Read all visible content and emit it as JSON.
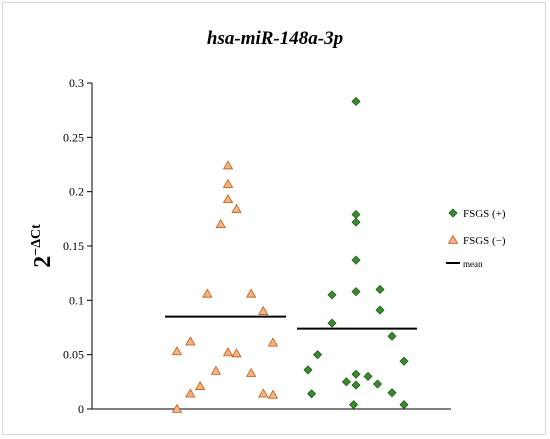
{
  "chart_data": {
    "type": "scatter",
    "title": "hsa-miR-148a-3p",
    "ylabel_base": "2",
    "ylabel_exponent": "−ΔCt",
    "ylim": [
      0,
      0.3
    ],
    "yticks": [
      "0",
      "0.05",
      "0.1",
      "0.15",
      "0.2",
      "0.25",
      "0.3"
    ],
    "ytick_values": [
      0,
      0.05,
      0.1,
      0.15,
      0.2,
      0.25,
      0.3
    ],
    "grid": false,
    "legend_position": "right",
    "series": [
      {
        "name": "FSGS (+)",
        "marker": "diamond",
        "color": "#3a8a2e",
        "edge": "#1e5c17",
        "mean": 0.074,
        "points": [
          {
            "x": 0.095,
            "y": 0.036
          },
          {
            "x": 0.11,
            "y": 0.014
          },
          {
            "x": 0.135,
            "y": 0.05
          },
          {
            "x": 0.195,
            "y": 0.079
          },
          {
            "x": 0.195,
            "y": 0.105
          },
          {
            "x": 0.255,
            "y": 0.025
          },
          {
            "x": 0.285,
            "y": 0.004
          },
          {
            "x": 0.295,
            "y": 0.032
          },
          {
            "x": 0.295,
            "y": 0.022
          },
          {
            "x": 0.295,
            "y": 0.108
          },
          {
            "x": 0.295,
            "y": 0.137
          },
          {
            "x": 0.295,
            "y": 0.172
          },
          {
            "x": 0.295,
            "y": 0.179
          },
          {
            "x": 0.295,
            "y": 0.283
          },
          {
            "x": 0.345,
            "y": 0.03
          },
          {
            "x": 0.385,
            "y": 0.023
          },
          {
            "x": 0.395,
            "y": 0.11
          },
          {
            "x": 0.395,
            "y": 0.091
          },
          {
            "x": 0.445,
            "y": 0.015
          },
          {
            "x": 0.445,
            "y": 0.067
          },
          {
            "x": 0.495,
            "y": 0.044
          },
          {
            "x": 0.495,
            "y": 0.004
          }
        ]
      },
      {
        "name": "FSGS (−)",
        "marker": "triangle",
        "color": "#f4b183",
        "edge": "#c55a11",
        "mean": 0.085,
        "points": [
          {
            "x": 0.135,
            "y": 0.0
          },
          {
            "x": 0.135,
            "y": 0.053
          },
          {
            "x": 0.19,
            "y": 0.062
          },
          {
            "x": 0.19,
            "y": 0.014
          },
          {
            "x": 0.23,
            "y": 0.021
          },
          {
            "x": 0.26,
            "y": 0.106
          },
          {
            "x": 0.295,
            "y": 0.035
          },
          {
            "x": 0.315,
            "y": 0.17
          },
          {
            "x": 0.345,
            "y": 0.224
          },
          {
            "x": 0.345,
            "y": 0.207
          },
          {
            "x": 0.345,
            "y": 0.193
          },
          {
            "x": 0.345,
            "y": 0.052
          },
          {
            "x": 0.38,
            "y": 0.051
          },
          {
            "x": 0.38,
            "y": 0.184
          },
          {
            "x": 0.44,
            "y": 0.106
          },
          {
            "x": 0.44,
            "y": 0.033
          },
          {
            "x": 0.49,
            "y": 0.09
          },
          {
            "x": 0.49,
            "y": 0.014
          },
          {
            "x": 0.53,
            "y": 0.061
          },
          {
            "x": 0.53,
            "y": 0.013
          }
        ]
      }
    ],
    "legend": [
      {
        "label": "FSGS (+)",
        "marker": "diamond"
      },
      {
        "label": "FSGS (−)",
        "marker": "triangle"
      },
      {
        "label": "mean",
        "marker": "line"
      }
    ]
  }
}
